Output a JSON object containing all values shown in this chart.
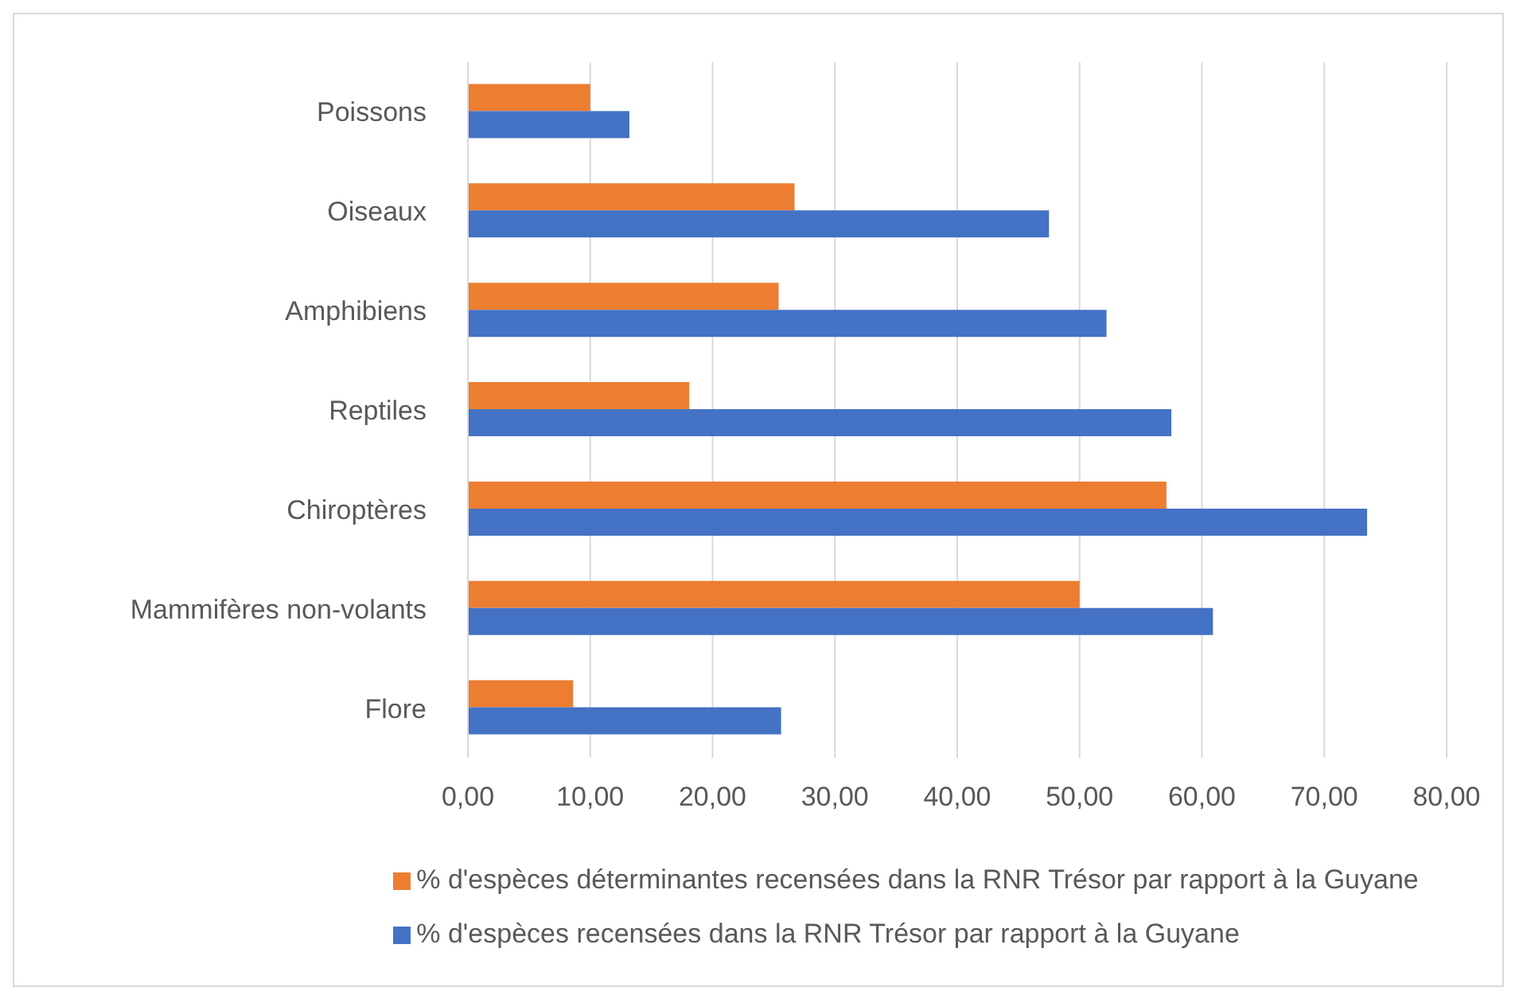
{
  "chart_data": {
    "type": "bar",
    "orientation": "horizontal",
    "categories": [
      "Poissons",
      "Oiseaux",
      "Amphibiens",
      "Reptiles",
      "Chiroptères",
      "Mammifères non-volants",
      "Flore"
    ],
    "series": [
      {
        "name": "% d'espèces déterminantes recensées dans la RNR Trésor par rapport à la Guyane",
        "color": "#ed7d31",
        "values": [
          10.0,
          26.7,
          25.4,
          18.1,
          57.1,
          50.0,
          8.6
        ]
      },
      {
        "name": "% d'espèces recensées dans la RNR Trésor par rapport à la Guyane",
        "color": "#4472c4",
        "values": [
          13.2,
          47.5,
          52.2,
          57.5,
          73.5,
          60.9,
          25.6
        ]
      }
    ],
    "xlim": [
      0,
      80
    ],
    "xticks": [
      {
        "value": 0,
        "label": "0,00"
      },
      {
        "value": 10,
        "label": "10,00"
      },
      {
        "value": 20,
        "label": "20,00"
      },
      {
        "value": 30,
        "label": "30,00"
      },
      {
        "value": 40,
        "label": "40,00"
      },
      {
        "value": 50,
        "label": "50,00"
      },
      {
        "value": 60,
        "label": "60,00"
      },
      {
        "value": 70,
        "label": "70,00"
      },
      {
        "value": 80,
        "label": "80,00"
      }
    ],
    "grid": "x",
    "legend": "bottom"
  }
}
